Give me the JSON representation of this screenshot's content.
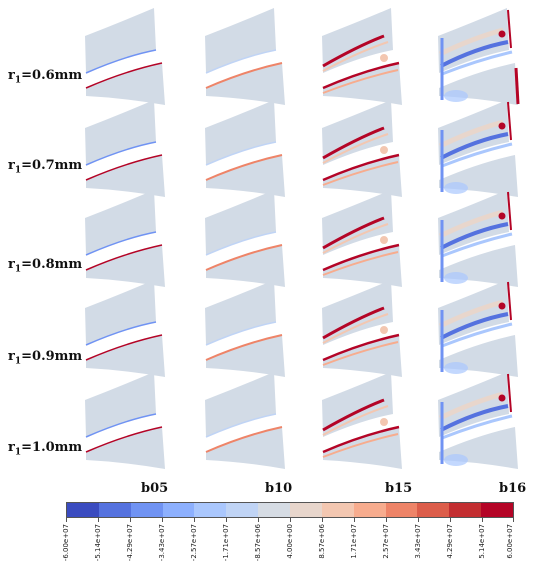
{
  "row_labels": [
    {
      "base": "r",
      "sub": "1",
      "value": "=0.6mm"
    },
    {
      "base": "r",
      "sub": "1",
      "value": "=0.7mm"
    },
    {
      "base": "r",
      "sub": "1",
      "value": "=0.8mm"
    },
    {
      "base": "r",
      "sub": "1",
      "value": "=0.9mm"
    },
    {
      "base": "r",
      "sub": "1",
      "value": "=1.0mm"
    }
  ],
  "column_labels": [
    "b05",
    "b10",
    "b15",
    "b16"
  ],
  "colorbar": {
    "colors": [
      "#3b4cc0",
      "#5572df",
      "#7093f3",
      "#8db0fe",
      "#aac7fd",
      "#c0d4f5",
      "#d6dce4",
      "#e8d6cc",
      "#f3c7b1",
      "#f7ac8e",
      "#ee8468",
      "#dc5d4a",
      "#c32e31",
      "#b40426"
    ],
    "tick_labels": [
      "-6.00e+07",
      "-5.14e+07",
      "-4.29e+07",
      "-3.43e+07",
      "-2.57e+07",
      "-1.71e+07",
      "-8.57e+06",
      "4.00e+00",
      "8.57e+06",
      "1.71e+07",
      "2.57e+07",
      "3.43e+07",
      "4.29e+07",
      "5.14e+07",
      "6.00e+07"
    ]
  }
}
